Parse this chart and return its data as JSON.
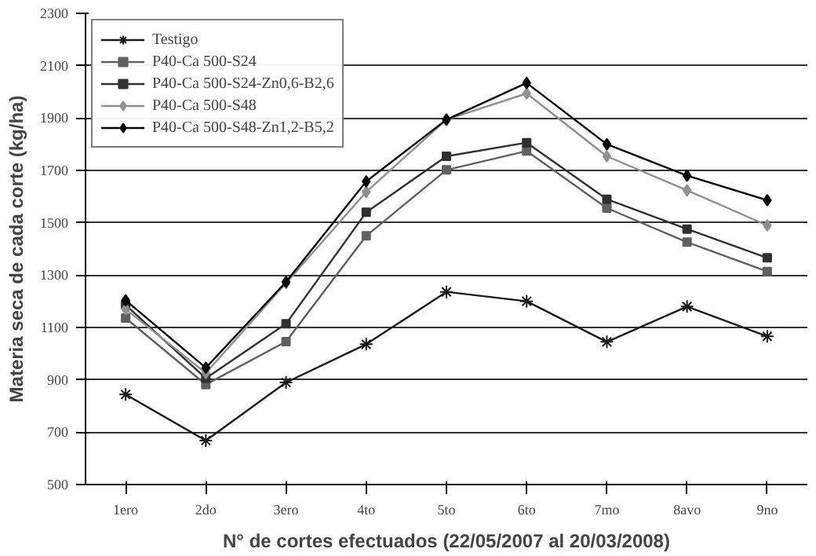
{
  "chart_data": {
    "type": "line",
    "xlabel": "N° de cortes efectuados (22/05/2007 al 20/03/2008)",
    "ylabel": "Materia seca de cada corte (kg/ha)",
    "categories": [
      "1ero",
      "2do",
      "3ero",
      "4to",
      "5to",
      "6to",
      "7mo",
      "8avo",
      "9no"
    ],
    "ylim": [
      500,
      2300
    ],
    "yticks": [
      500,
      700,
      900,
      1100,
      1300,
      1500,
      1700,
      1900,
      2100,
      2300
    ],
    "grid": "y",
    "legend": "top left",
    "series": [
      {
        "name": "Testigo",
        "color": "#1a1a1a",
        "marker": "cross",
        "values": [
          844,
          668,
          890,
          1036,
          1236,
          1200,
          1045,
          1180,
          1066
        ]
      },
      {
        "name": "P40-Ca 500-S24",
        "color": "#606060",
        "marker": "square",
        "values": [
          1136,
          882,
          1046,
          1450,
          1702,
          1774,
          1556,
          1426,
          1314
        ]
      },
      {
        "name": "P40-Ca 500-S24-Zn0,6-B2,6",
        "color": "#303030",
        "marker": "square",
        "values": [
          1186,
          906,
          1114,
          1540,
          1754,
          1806,
          1590,
          1476,
          1366
        ]
      },
      {
        "name": "P40-Ca 500-S48",
        "color": "#909090",
        "marker": "diamond",
        "values": [
          1170,
          926,
          1270,
          1618,
          1894,
          1994,
          1754,
          1624,
          1490
        ]
      },
      {
        "name": "P40-Ca 500-S48-Zn1,2-B5,2",
        "color": "#000000",
        "marker": "diamond",
        "values": [
          1204,
          946,
          1274,
          1658,
          1894,
          2034,
          1800,
          1680,
          1586
        ]
      }
    ]
  }
}
